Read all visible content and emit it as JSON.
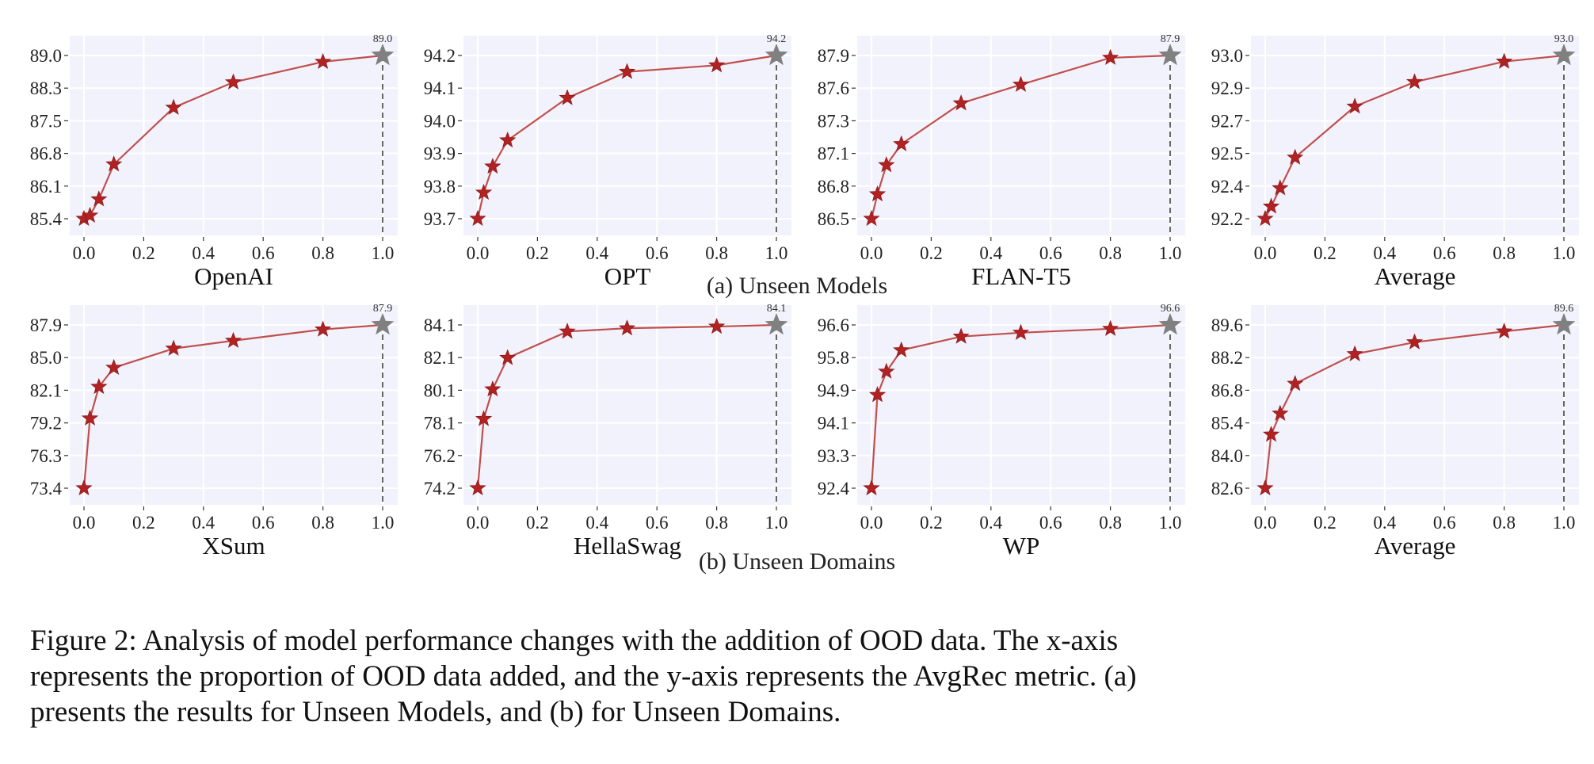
{
  "figure": {
    "subcaption_a": "(a) Unseen Models",
    "subcaption_b": "(b) Unseen Domains",
    "caption_lines": [
      "Figure 2:  Analysis of model performance changes with the addition of OOD data.  The x-axis",
      "represents the proportion of OOD data added, and the y-axis represents the AvgRec metric.  (a)",
      "presents the results for Unseen Models, and (b) for Unseen Domains."
    ]
  },
  "colors": {
    "background": "#f2f2fd",
    "line": "#c0504d",
    "marker": "#b22222",
    "final_marker": "#808080",
    "grid": "#ffffff"
  },
  "chart_data": [
    {
      "type": "line",
      "xlabel": "OpenAI",
      "x": [
        0,
        0.02,
        0.05,
        0.1,
        0.3,
        0.5,
        0.8,
        1.0
      ],
      "values": [
        85.4,
        85.47,
        85.83,
        86.6,
        87.85,
        88.41,
        88.86,
        89.0
      ],
      "yticks": [
        "85.4",
        "86.1",
        "86.8",
        "87.5",
        "88.3",
        "89.0"
      ],
      "ylim": [
        85.4,
        89.0
      ],
      "xticks": [
        "0.0",
        "0.2",
        "0.4",
        "0.6",
        "0.8",
        "1.0"
      ],
      "annotation": "89.0",
      "grid": true
    },
    {
      "type": "line",
      "xlabel": "OPT",
      "x": [
        0,
        0.02,
        0.05,
        0.1,
        0.3,
        0.5,
        0.8,
        1.0
      ],
      "values": [
        93.7,
        93.78,
        93.86,
        93.94,
        94.07,
        94.15,
        94.17,
        94.2
      ],
      "yticks": [
        "93.7",
        "93.8",
        "93.9",
        "94.0",
        "94.1",
        "94.2"
      ],
      "ylim": [
        93.7,
        94.2
      ],
      "xticks": [
        "0.0",
        "0.2",
        "0.4",
        "0.6",
        "0.8",
        "1.0"
      ],
      "annotation": "94.2",
      "grid": true
    },
    {
      "type": "line",
      "xlabel": "FLAN-T5",
      "x": [
        0,
        0.02,
        0.05,
        0.1,
        0.3,
        0.5,
        0.8,
        1.0
      ],
      "values": [
        86.5,
        86.71,
        86.96,
        87.14,
        87.49,
        87.65,
        87.88,
        87.9
      ],
      "yticks": [
        "86.5",
        "86.8",
        "87.1",
        "87.3",
        "87.6",
        "87.9"
      ],
      "ylim": [
        86.5,
        87.9
      ],
      "xticks": [
        "0.0",
        "0.2",
        "0.4",
        "0.6",
        "0.8",
        "1.0"
      ],
      "annotation": "87.9",
      "grid": true
    },
    {
      "type": "line",
      "xlabel": "Average",
      "x": [
        0,
        0.02,
        0.05,
        0.1,
        0.3,
        0.5,
        0.8,
        1.0
      ],
      "values": [
        92.2,
        92.26,
        92.35,
        92.5,
        92.75,
        92.87,
        92.97,
        93.0
      ],
      "yticks": [
        "92.2",
        "92.4",
        "92.5",
        "92.7",
        "92.9",
        "93.0"
      ],
      "ylim": [
        92.2,
        93.0
      ],
      "xticks": [
        "0.0",
        "0.2",
        "0.4",
        "0.6",
        "0.8",
        "1.0"
      ],
      "annotation": "93.0",
      "grid": true
    },
    {
      "type": "line",
      "xlabel": "XSum",
      "x": [
        0,
        0.02,
        0.05,
        0.1,
        0.3,
        0.5,
        0.8,
        1.0
      ],
      "values": [
        73.4,
        79.6,
        82.4,
        84.1,
        85.8,
        86.5,
        87.5,
        87.9
      ],
      "yticks": [
        "73.4",
        "76.3",
        "79.2",
        "82.1",
        "85.0",
        "87.9"
      ],
      "ylim": [
        73.4,
        87.9
      ],
      "xticks": [
        "0.0",
        "0.2",
        "0.4",
        "0.6",
        "0.8",
        "1.0"
      ],
      "annotation": "87.9",
      "grid": true
    },
    {
      "type": "line",
      "xlabel": "HellaSwag",
      "x": [
        0,
        0.02,
        0.05,
        0.1,
        0.3,
        0.5,
        0.8,
        1.0
      ],
      "values": [
        74.2,
        78.4,
        80.2,
        82.1,
        83.7,
        83.9,
        84.0,
        84.1
      ],
      "yticks": [
        "74.2",
        "76.2",
        "78.1",
        "80.1",
        "82.1",
        "84.1"
      ],
      "ylim": [
        74.2,
        84.1
      ],
      "xticks": [
        "0.0",
        "0.2",
        "0.4",
        "0.6",
        "0.8",
        "1.0"
      ],
      "annotation": "84.1",
      "grid": true
    },
    {
      "type": "line",
      "xlabel": "WP",
      "x": [
        0,
        0.02,
        0.05,
        0.1,
        0.3,
        0.5,
        0.8,
        1.0
      ],
      "values": [
        92.4,
        94.8,
        95.4,
        95.95,
        96.3,
        96.4,
        96.5,
        96.6
      ],
      "yticks": [
        "92.4",
        "93.3",
        "94.1",
        "94.9",
        "95.8",
        "96.6"
      ],
      "ylim": [
        92.4,
        96.6
      ],
      "xticks": [
        "0.0",
        "0.2",
        "0.4",
        "0.6",
        "0.8",
        "1.0"
      ],
      "annotation": "96.6",
      "grid": true
    },
    {
      "type": "line",
      "xlabel": "Average",
      "x": [
        0,
        0.02,
        0.05,
        0.1,
        0.3,
        0.5,
        0.8,
        1.0
      ],
      "values": [
        82.6,
        84.9,
        85.8,
        87.08,
        88.35,
        88.86,
        89.32,
        89.6
      ],
      "yticks": [
        "82.6",
        "84.0",
        "85.4",
        "86.8",
        "88.2",
        "89.6"
      ],
      "ylim": [
        82.6,
        89.6
      ],
      "xticks": [
        "0.0",
        "0.2",
        "0.4",
        "0.6",
        "0.8",
        "1.0"
      ],
      "annotation": "89.6",
      "grid": true
    }
  ]
}
